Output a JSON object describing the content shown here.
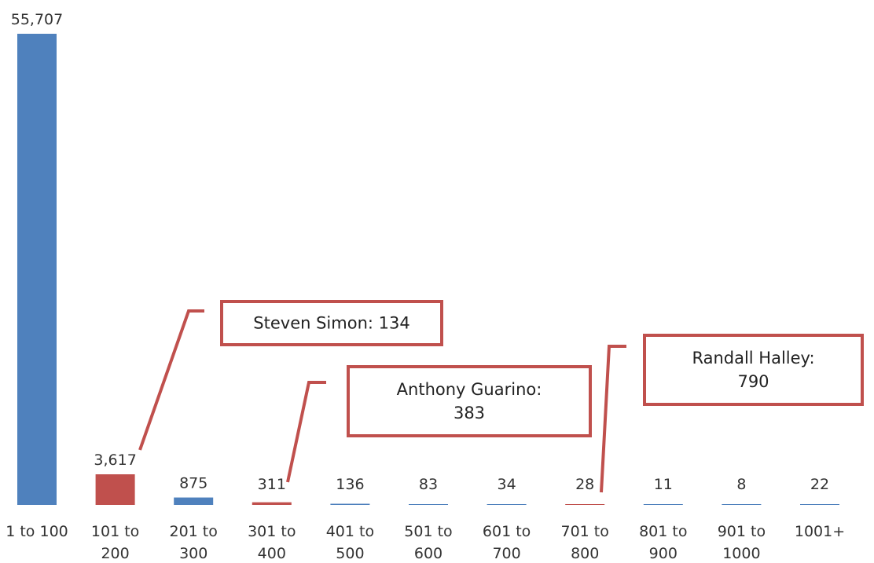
{
  "chart_data": {
    "type": "bar",
    "categories": [
      "1 to 100",
      "101 to 200",
      "201 to 300",
      "301 to 400",
      "401 to 500",
      "501 to 600",
      "601 to 700",
      "701 to 800",
      "801 to 900",
      "901 to 1000",
      "1001+"
    ],
    "category_lines": [
      [
        "1 to 100"
      ],
      [
        "101 to",
        "200"
      ],
      [
        "201 to",
        "300"
      ],
      [
        "301 to",
        "400"
      ],
      [
        "401 to",
        "500"
      ],
      [
        "501 to",
        "600"
      ],
      [
        "601 to",
        "700"
      ],
      [
        "701 to",
        "800"
      ],
      [
        "801 to",
        "900"
      ],
      [
        "901 to",
        "1000"
      ],
      [
        "1001+"
      ]
    ],
    "values": [
      55707,
      3617,
      875,
      311,
      136,
      83,
      34,
      28,
      11,
      8,
      22
    ],
    "value_labels": [
      "55,707",
      "3,617",
      "875",
      "311",
      "136",
      "83",
      "34",
      "28",
      "11",
      "8",
      "22"
    ],
    "bar_colors": [
      "#4F81BD",
      "#C0504D",
      "#4F81BD",
      "#C0504D",
      "#4F81BD",
      "#4F81BD",
      "#4F81BD",
      "#C0504D",
      "#4F81BD",
      "#4F81BD",
      "#4F81BD"
    ],
    "ylim": [
      0,
      55707
    ],
    "grid": false,
    "legend": "none",
    "title": "",
    "xlabel": "",
    "ylabel": "",
    "annotations": [
      {
        "target_category": "101 to 200",
        "lines": [
          "Steven Simon: 134"
        ],
        "color": "#C0504D"
      },
      {
        "target_category": "301 to 400",
        "lines": [
          "Anthony Guarino:",
          "383"
        ],
        "color": "#C0504D"
      },
      {
        "target_category": "701 to 800",
        "lines": [
          "Randall Halley:",
          "790"
        ],
        "color": "#C0504D"
      }
    ]
  }
}
